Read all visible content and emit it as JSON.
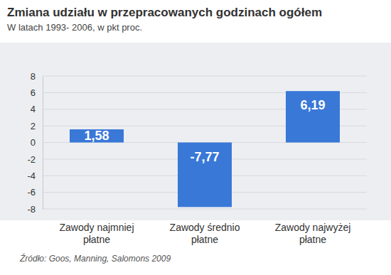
{
  "chart_data": {
    "type": "bar",
    "title": "Zmiana udziału w przepracowanych godzinach ogółem",
    "subtitle": "W latach 1993- 2006, w pkt proc.",
    "source": "Źródło: Goos, Manning, Salomons 2009",
    "categories": [
      "Zawody najmniej płatne",
      "Zawody średnio płatne",
      "Zawody najwyżej płatne"
    ],
    "values": [
      1.58,
      -7.77,
      6.19
    ],
    "value_labels": [
      "1,58",
      "-7,77",
      "6,19"
    ],
    "data_labels": true,
    "color": "#3a78d8",
    "ylim": [
      -8,
      8
    ],
    "yticks": [
      -8,
      -6,
      -4,
      -2,
      0,
      2,
      4,
      6,
      8
    ],
    "grid": true
  }
}
